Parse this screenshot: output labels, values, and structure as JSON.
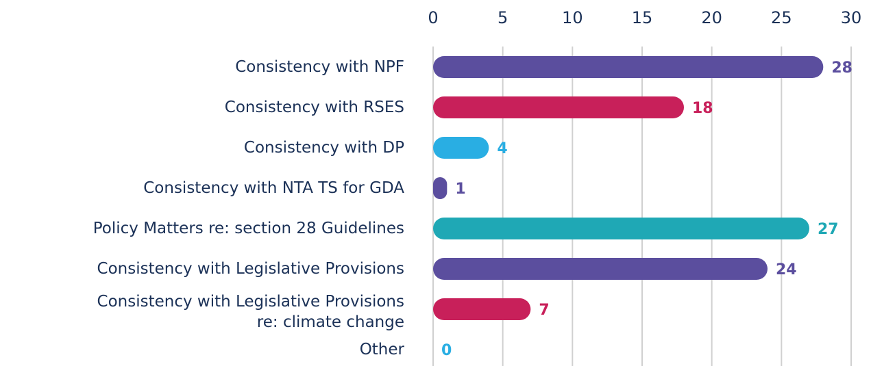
{
  "chart_data": {
    "type": "bar",
    "orientation": "horizontal",
    "categories": [
      "Consistency with NPF",
      "Consistency with RSES",
      "Consistency with DP",
      "Consistency with NTA TS for GDA",
      "Policy Matters re: section 28 Guidelines",
      "Consistency with Legislative Provisions",
      "Consistency with Legislative Provisions\nre: climate change",
      "Other"
    ],
    "values": [
      28,
      18,
      4,
      1,
      27,
      24,
      7,
      0
    ],
    "colors": [
      "#5b4e9e",
      "#c8205a",
      "#29aee3",
      "#5b4e9e",
      "#1fa8b5",
      "#5b4e9e",
      "#c8205a",
      "#29aee3"
    ],
    "xlim": [
      0,
      30
    ],
    "xticks": [
      0,
      5,
      10,
      15,
      20,
      25,
      30
    ],
    "grid": true
  }
}
